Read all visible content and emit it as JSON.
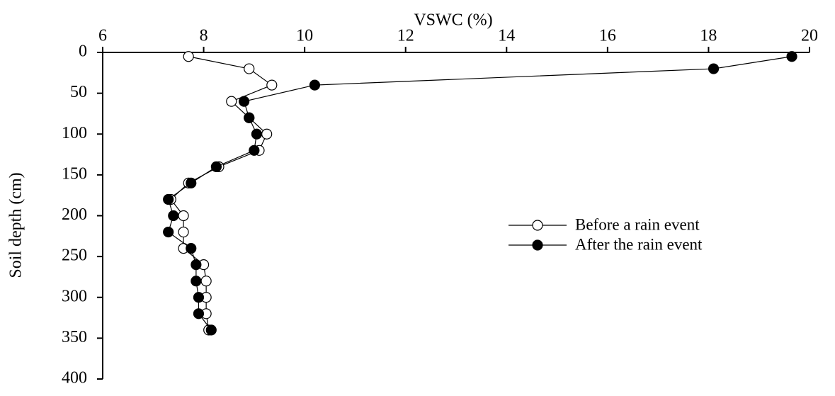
{
  "chart_data": {
    "type": "line",
    "x_label": "VSWC (%)",
    "y_label": "Soil depth (cm)",
    "depth": [
      5,
      20,
      40,
      60,
      80,
      100,
      120,
      140,
      160,
      180,
      200,
      220,
      240,
      260,
      280,
      300,
      320,
      340
    ],
    "series": [
      {
        "name": "Before a rain event",
        "color": "#ffffff",
        "values": [
          7.7,
          8.9,
          9.35,
          8.55,
          8.9,
          9.25,
          9.1,
          8.3,
          7.7,
          7.35,
          7.6,
          7.6,
          7.6,
          8.0,
          8.05,
          8.05,
          8.05,
          8.1
        ]
      },
      {
        "name": "After the rain event",
        "color": "#000000",
        "values": [
          19.65,
          18.1,
          10.2,
          8.8,
          8.9,
          9.05,
          9.0,
          8.25,
          7.75,
          7.3,
          7.4,
          7.3,
          7.75,
          7.85,
          7.85,
          7.9,
          7.9,
          8.15
        ]
      }
    ],
    "xlim": [
      6,
      20
    ],
    "xticks": [
      6,
      8,
      10,
      12,
      14,
      16,
      18,
      20
    ],
    "ylim": [
      0,
      400
    ],
    "yticks": [
      0,
      50,
      100,
      150,
      200,
      250,
      300,
      350,
      400
    ],
    "y_inverted": true,
    "legend": "right"
  }
}
